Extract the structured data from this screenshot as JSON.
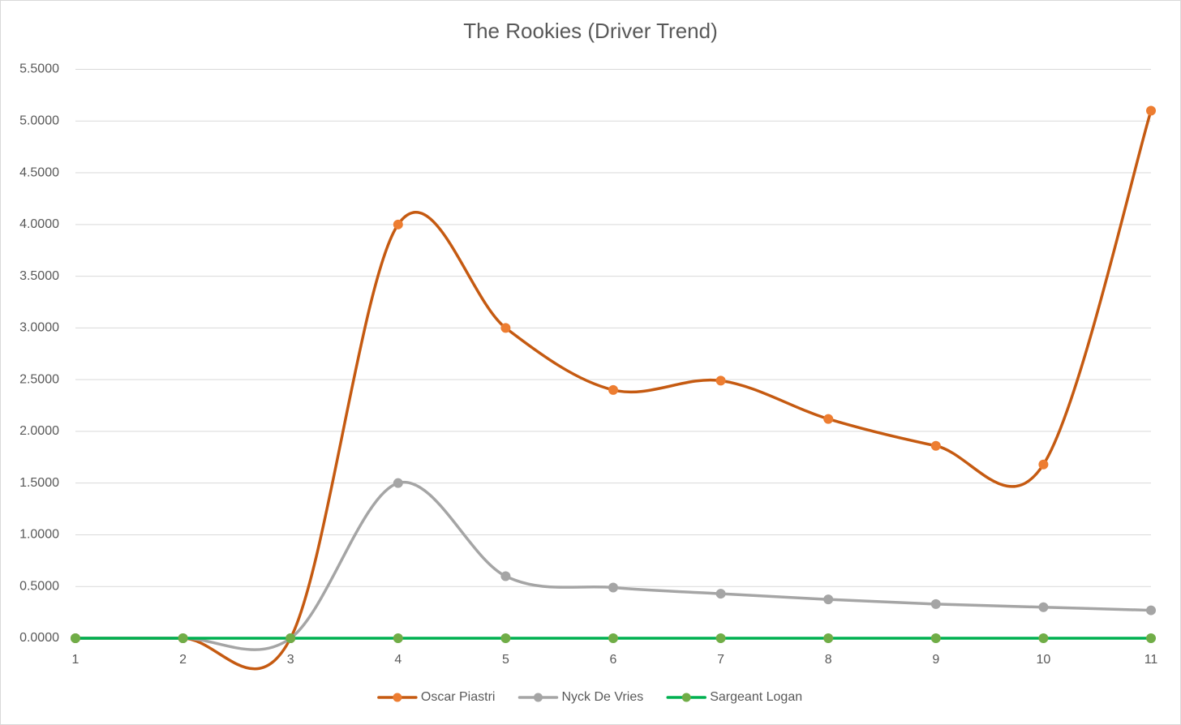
{
  "chart_data": {
    "type": "line",
    "title": "The Rookies (Driver Trend)",
    "x": [
      1,
      2,
      3,
      4,
      5,
      6,
      7,
      8,
      9,
      10,
      11
    ],
    "xlim": [
      1,
      11
    ],
    "xticks": [
      1,
      2,
      3,
      4,
      5,
      6,
      7,
      8,
      9,
      10,
      11
    ],
    "ylim": [
      0,
      5.5
    ],
    "yticks": [
      {
        "value": 0,
        "label": "0.0000"
      },
      {
        "value": 0.5,
        "label": "0.5000"
      },
      {
        "value": 1,
        "label": "1.0000"
      },
      {
        "value": 1.5,
        "label": "1.5000"
      },
      {
        "value": 2,
        "label": "2.0000"
      },
      {
        "value": 2.5,
        "label": "2.5000"
      },
      {
        "value": 3,
        "label": "3.0000"
      },
      {
        "value": 3.5,
        "label": "3.5000"
      },
      {
        "value": 4,
        "label": "4.0000"
      },
      {
        "value": 4.5,
        "label": "4.5000"
      },
      {
        "value": 5,
        "label": "5.0000"
      },
      {
        "value": 5.5,
        "label": "5.5000"
      }
    ],
    "grid": true,
    "smooth": true,
    "legend": "bottom",
    "series": [
      {
        "name": "Oscar Piastri",
        "color": "#c55a11",
        "marker_color": "#ed7d31",
        "values": [
          0,
          0,
          0,
          4.0,
          3.0,
          2.4,
          2.49,
          2.12,
          1.86,
          1.68,
          5.1
        ]
      },
      {
        "name": "Nyck De Vries",
        "color": "#a5a5a5",
        "marker_color": "#a5a5a5",
        "values": [
          0,
          0,
          0,
          1.5,
          0.6,
          0.49,
          0.43,
          0.375,
          0.33,
          0.3,
          0.27
        ]
      },
      {
        "name": "Sargeant Logan",
        "color": "#00b050",
        "marker_color": "#70ad47",
        "values": [
          0,
          0,
          0,
          0,
          0,
          0,
          0,
          0,
          0,
          0,
          0
        ]
      }
    ]
  }
}
